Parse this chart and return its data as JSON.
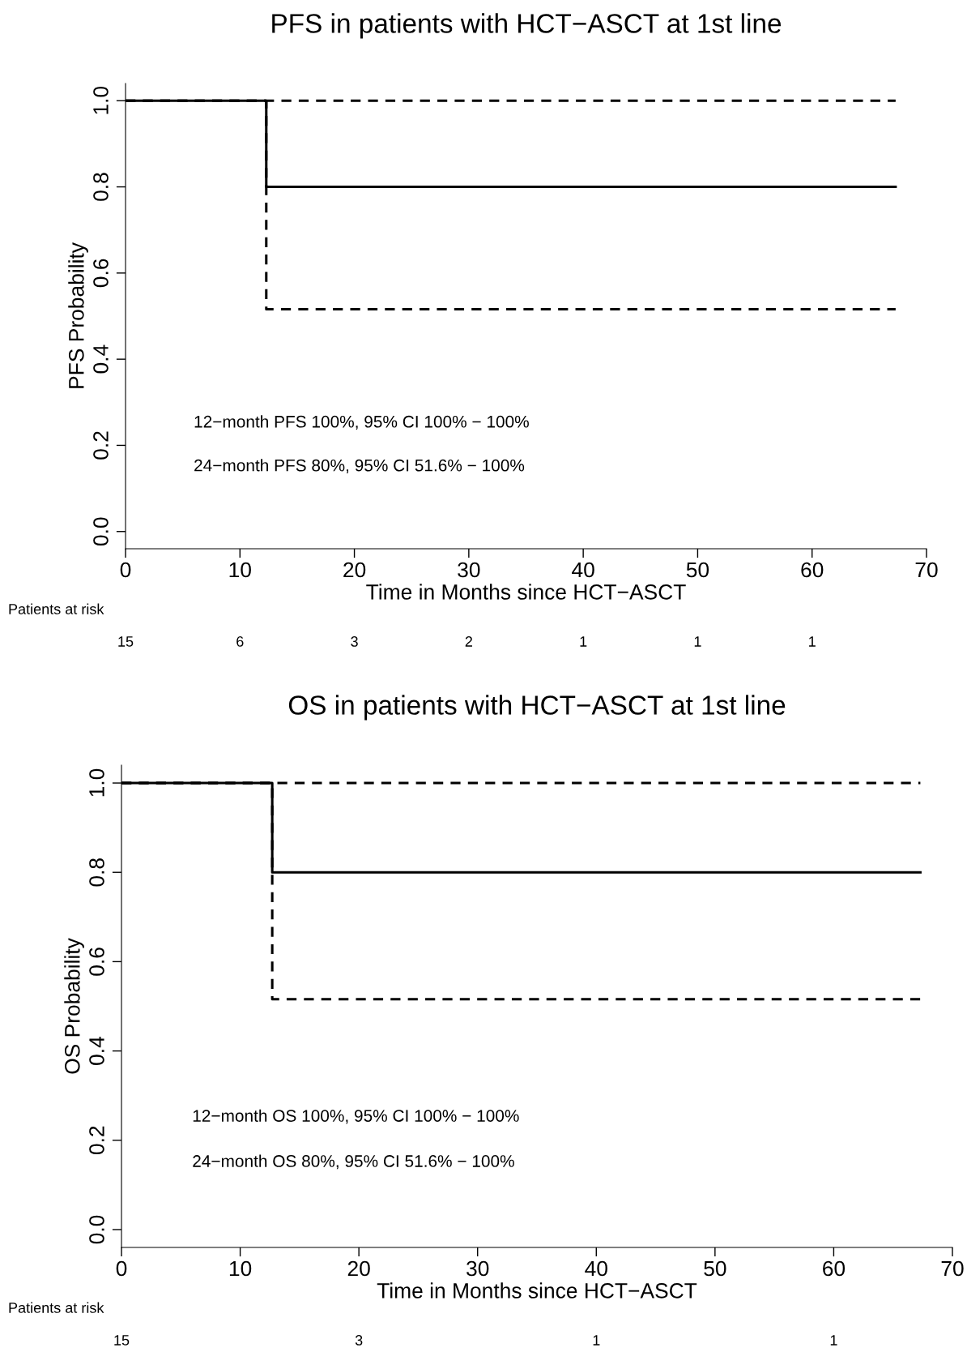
{
  "chart_data": [
    {
      "type": "step",
      "title": "PFS in patients with HCT−ASCT at 1st line",
      "xlabel": "Time in Months since HCT−ASCT",
      "ylabel": "PFS Probability",
      "series": [
        {
          "color": "#000000",
          "x": [
            0,
            12.3,
            67.3
          ],
          "values": [
            1.0,
            0.8,
            0.8
          ],
          "line_style": "solid"
        },
        {
          "color": "#000000",
          "x": [
            0,
            12.3,
            67.3
          ],
          "values": [
            1.0,
            1.0,
            1.0
          ],
          "line_style": "dashed"
        },
        {
          "color": "#000000",
          "x": [
            0,
            12.3,
            67.3
          ],
          "values": [
            1.0,
            0.516,
            0.516
          ],
          "line_style": "dashed"
        }
      ],
      "xlim": [
        0,
        70
      ],
      "xticks": [
        0,
        10,
        20,
        30,
        40,
        50,
        60,
        70
      ],
      "ylim": [
        -0.04,
        1.04
      ],
      "yticks": [
        {
          "value": 0,
          "label": "0.0"
        },
        {
          "value": 0.2,
          "label": "0.2"
        },
        {
          "value": 0.4,
          "label": "0.4"
        },
        {
          "value": 0.6,
          "label": "0.6"
        },
        {
          "value": 0.8,
          "label": "0.8"
        },
        {
          "value": 1.0,
          "label": "1.0"
        }
      ],
      "grid": false,
      "legend": false,
      "annotations": [
        "12−month PFS 100%, 95% CI 100% − 100%",
        "24−month PFS 80%, 95% CI 51.6% − 100%",
        "Patients at risk",
        "15",
        "6",
        "3",
        "2",
        "1",
        "1",
        "1"
      ]
    },
    {
      "type": "step",
      "title": "OS in patients with HCT−ASCT at 1st line",
      "xlabel": "Time in Months since HCT−ASCT",
      "ylabel": "OS Probability",
      "series": [
        {
          "color": "#000000",
          "x": [
            0,
            12.7,
            67.3
          ],
          "values": [
            1.0,
            0.8,
            0.8
          ],
          "line_style": "solid"
        },
        {
          "color": "#000000",
          "x": [
            0,
            12.7,
            67.3
          ],
          "values": [
            1.0,
            1.0,
            1.0
          ],
          "line_style": "dashed"
        },
        {
          "color": "#000000",
          "x": [
            0,
            12.7,
            67.3
          ],
          "values": [
            1.0,
            0.516,
            0.516
          ],
          "line_style": "dashed"
        }
      ],
      "xlim": [
        0,
        70
      ],
      "xticks": [
        0,
        10,
        20,
        30,
        40,
        50,
        60,
        70
      ],
      "ylim": [
        -0.04,
        1.04
      ],
      "yticks": [
        {
          "value": 0,
          "label": "0.0"
        },
        {
          "value": 0.2,
          "label": "0.2"
        },
        {
          "value": 0.4,
          "label": "0.4"
        },
        {
          "value": 0.6,
          "label": "0.6"
        },
        {
          "value": 0.8,
          "label": "0.8"
        },
        {
          "value": 1.0,
          "label": "1.0"
        }
      ],
      "grid": false,
      "legend": false,
      "annotations": [
        "12−month OS 100%, 95% CI 100% − 100%",
        "24−month OS 80%, 95% CI 51.6% − 100%",
        "Patients at risk",
        "15",
        "3",
        "1",
        "1"
      ]
    }
  ]
}
